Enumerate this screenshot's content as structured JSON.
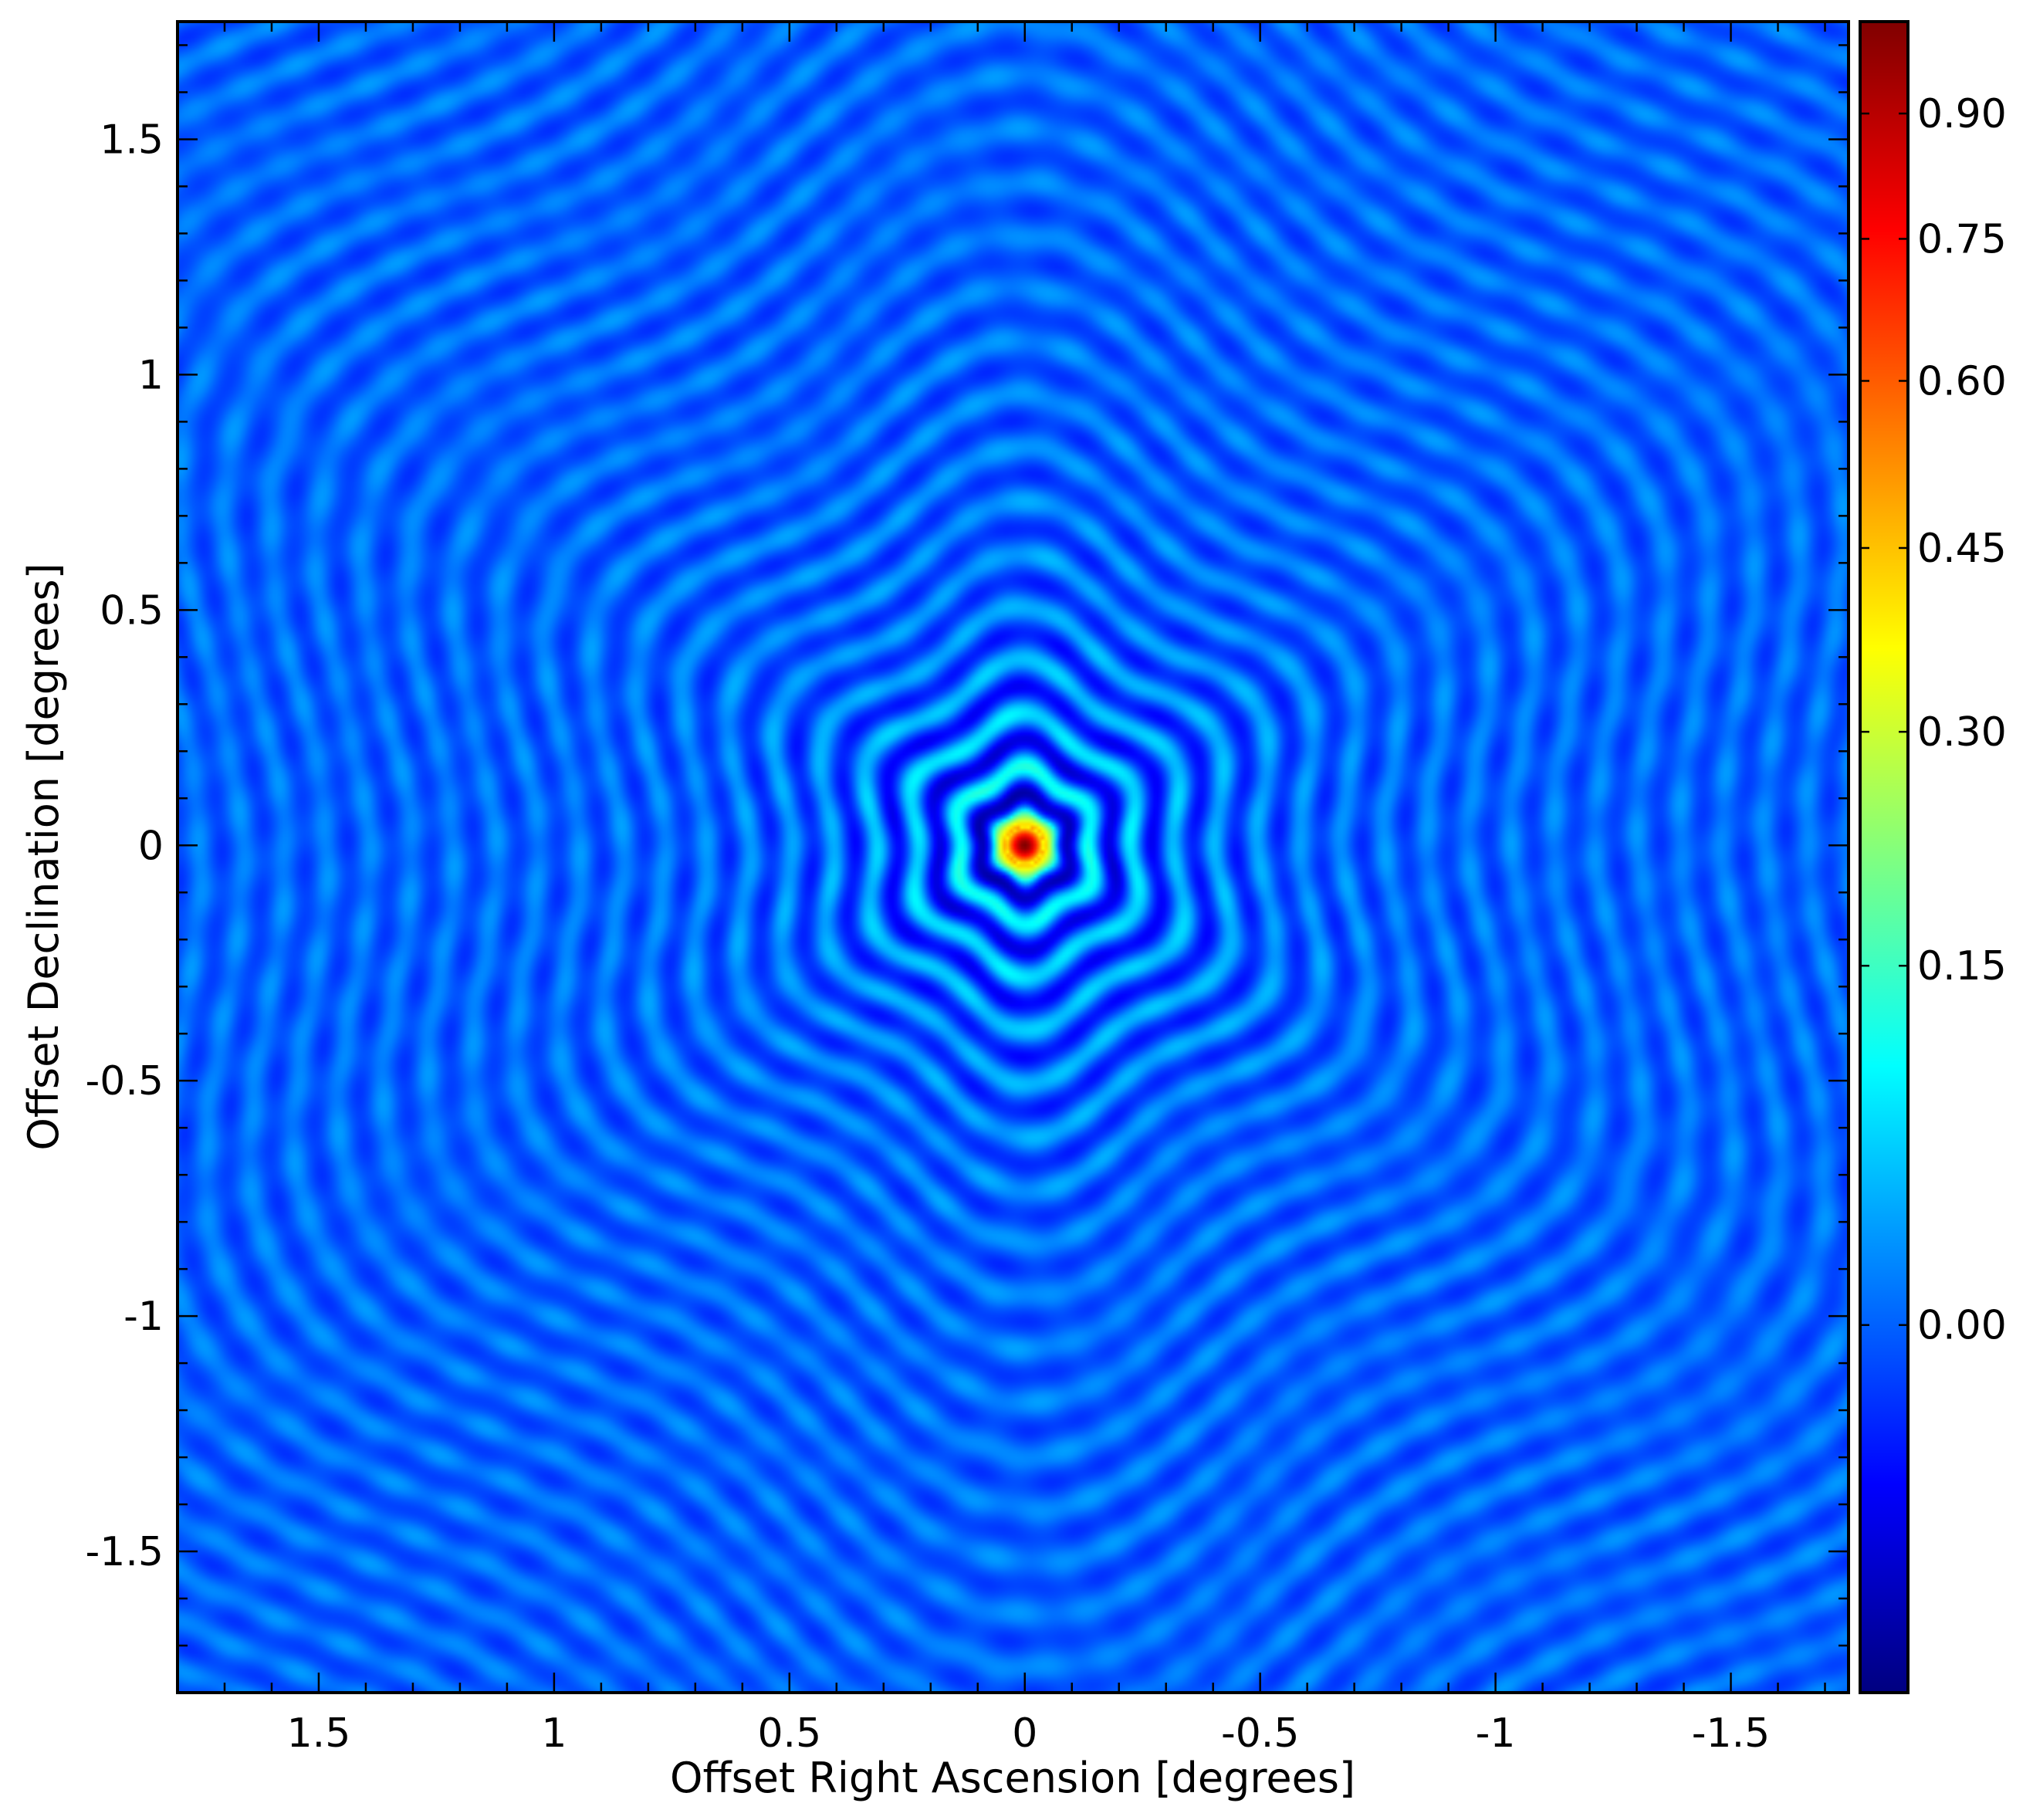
{
  "chart_data": {
    "type": "heatmap",
    "title": "",
    "xlabel": "Offset Right Ascension [degrees]",
    "ylabel": "Offset Declination [degrees]",
    "xlim": [
      1.8,
      -1.75
    ],
    "ylim": [
      -1.8,
      1.75
    ],
    "x_ticks": [
      1.5,
      1,
      0.5,
      0,
      -0.5,
      -1,
      -1.5
    ],
    "x_tick_labels": [
      "1.5",
      "1",
      "0.5",
      "0",
      "-0.5",
      "-1",
      "-1.5"
    ],
    "y_ticks": [
      1.5,
      1,
      0.5,
      0,
      -0.5,
      -1,
      -1.5
    ],
    "y_tick_labels": [
      "1.5",
      "1",
      "0.5",
      "0",
      "-0.5",
      "-1",
      "-1.5"
    ],
    "colorbar": {
      "colormap": "jet",
      "range": [
        -0.18,
        1.0
      ],
      "ticks": [
        0.9,
        0.75,
        0.6,
        0.45,
        0.3,
        0.15,
        0.0
      ],
      "tick_labels": [
        "0.90",
        "0.75",
        "0.60",
        "0.45",
        "0.30",
        "0.15",
        "0.00"
      ],
      "scale": "nonlinear"
    },
    "peak": {
      "x": 0,
      "y": 0,
      "value": 1.0
    },
    "description_values": {
      "background_level": 0.0,
      "first_null_radius_deg": 0.1,
      "sidelobe_ring_spacing_deg": 0.1
    }
  },
  "colors": {
    "background": "#1a5cf0",
    "peak": "#a00000",
    "axes": "#000000"
  }
}
